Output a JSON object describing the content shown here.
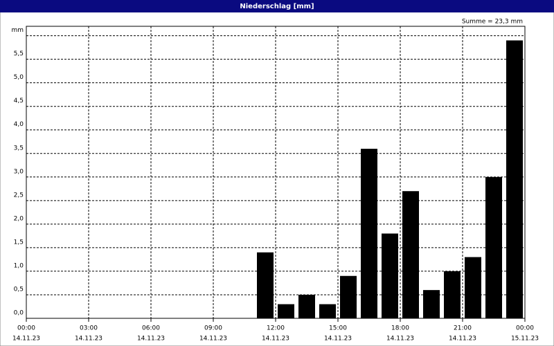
{
  "chart_data": {
    "type": "bar",
    "title": "Niederschlag [mm]",
    "annotation": "Summe = 23,3 mm",
    "x": [
      12,
      13,
      14,
      15,
      16,
      17,
      18,
      19,
      20,
      21,
      22,
      23,
      24
    ],
    "values": [
      1.4,
      0.3,
      0.5,
      0.3,
      0.9,
      3.6,
      1.8,
      2.7,
      0.6,
      1.0,
      1.3,
      3.0,
      5.9
    ],
    "color": "#000000",
    "xlim": [
      0,
      24
    ],
    "xticks": [
      {
        "value": 0,
        "label": "00:00",
        "sublabel": "14.11.23"
      },
      {
        "value": 3,
        "label": "03:00",
        "sublabel": "14.11.23"
      },
      {
        "value": 6,
        "label": "06:00",
        "sublabel": "14.11.23"
      },
      {
        "value": 9,
        "label": "09:00",
        "sublabel": "14.11.23"
      },
      {
        "value": 12,
        "label": "12:00",
        "sublabel": "14.11.23"
      },
      {
        "value": 15,
        "label": "15:00",
        "sublabel": "14.11.23"
      },
      {
        "value": 18,
        "label": "18:00",
        "sublabel": "14.11.23"
      },
      {
        "value": 21,
        "label": "21:00",
        "sublabel": "14.11.23"
      },
      {
        "value": 24,
        "label": "00:00",
        "sublabel": "15.11.23"
      }
    ],
    "ylim": [
      0,
      6.2
    ],
    "yticks": [
      {
        "value": 0,
        "label": "0,0"
      },
      {
        "value": 0.5,
        "label": "0,5"
      },
      {
        "value": 1,
        "label": "1,0"
      },
      {
        "value": 1.5,
        "label": "1,5"
      },
      {
        "value": 2,
        "label": "2,0"
      },
      {
        "value": 2.5,
        "label": "2,5"
      },
      {
        "value": 3,
        "label": "3,0"
      },
      {
        "value": 3.5,
        "label": "3,5"
      },
      {
        "value": 4,
        "label": "4,0"
      },
      {
        "value": 4.5,
        "label": "4,5"
      },
      {
        "value": 5,
        "label": "5,0"
      },
      {
        "value": 5.5,
        "label": "5,5"
      },
      {
        "value": 6,
        "label": "mm"
      }
    ],
    "grid": true
  }
}
